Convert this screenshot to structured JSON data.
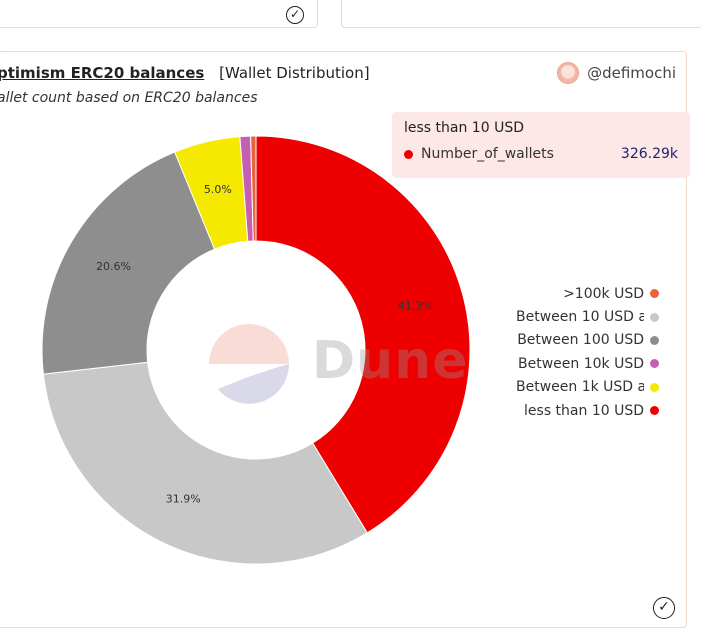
{
  "header": {
    "title": "ptimism ERC20 balances",
    "tag": "[Wallet Distribution]",
    "subtitle": "allet count based on ERC20 balances",
    "author": "@defimochi",
    "watermark": "Dune"
  },
  "tooltip": {
    "title": "less than 10 USD",
    "series": "Number_of_wallets",
    "value": "326.29k"
  },
  "chart_data": {
    "type": "pie",
    "donut": true,
    "series_name": "Number_of_wallets",
    "slices": [
      {
        "label": "less than 10 USD",
        "value": 41.3,
        "pct_label": "41.3%",
        "color": "#ee0000"
      },
      {
        "label": "Between 10 USD a",
        "value": 31.9,
        "pct_label": "31.9%",
        "color": "#c8c8c8"
      },
      {
        "label": "Between 100 USD",
        "value": 20.6,
        "pct_label": "20.6%",
        "color": "#8e8e8e"
      },
      {
        "label": "Between 1k USD a",
        "value": 5.0,
        "pct_label": "5.0%",
        "color": "#f5e900"
      },
      {
        "label": "Between 10k USD",
        "value": 0.8,
        "pct_label": "",
        "color": "#c65fb1"
      },
      {
        "label": ">100k USD",
        "value": 0.4,
        "pct_label": "",
        "color": "#e8623c"
      }
    ],
    "legend": [
      {
        "label": ">100k USD",
        "color": "#e8623c"
      },
      {
        "label": "Between 10 USD a",
        "color": "#c8c8c8"
      },
      {
        "label": "Between 100 USD",
        "color": "#8e8e8e"
      },
      {
        "label": "Between 10k USD",
        "color": "#c65fb1"
      },
      {
        "label": "Between 1k USD a",
        "color": "#f5e900"
      },
      {
        "label": "less than 10 USD",
        "color": "#ee0000"
      }
    ],
    "legend_position": "right"
  }
}
